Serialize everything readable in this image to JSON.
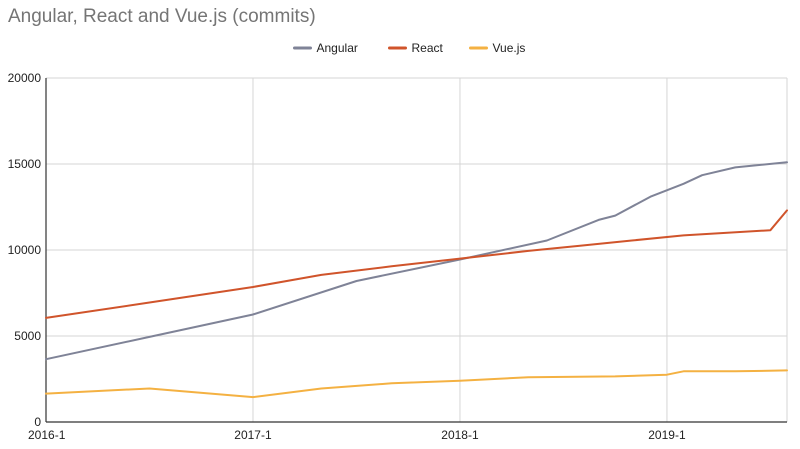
{
  "chart_data": {
    "type": "line",
    "title": "Angular, React and Vue.js (commits)",
    "xlabel": "",
    "ylabel": "",
    "x_ticks": [
      "2016-1",
      "2017-1",
      "2018-1",
      "2019-1"
    ],
    "x_tick_values": [
      2016.0,
      2017.0,
      2018.0,
      2019.0
    ],
    "xlim": [
      2016.0,
      2019.58
    ],
    "y_ticks": [
      0,
      5000,
      10000,
      15000,
      20000
    ],
    "ylim": [
      0,
      20000
    ],
    "grid": true,
    "legend_position": "top-center",
    "series": [
      {
        "name": "Angular",
        "color": "#7f8397",
        "points": [
          [
            2016.0,
            3650
          ],
          [
            2016.5,
            4950
          ],
          [
            2017.0,
            6250
          ],
          [
            2017.5,
            8200
          ],
          [
            2018.0,
            9450
          ],
          [
            2018.42,
            10550
          ],
          [
            2018.67,
            11750
          ],
          [
            2018.75,
            12000
          ],
          [
            2018.92,
            13100
          ],
          [
            2019.08,
            13850
          ],
          [
            2019.17,
            14350
          ],
          [
            2019.33,
            14800
          ],
          [
            2019.58,
            15100
          ]
        ]
      },
      {
        "name": "React",
        "color": "#d0542b",
        "points": [
          [
            2016.0,
            6050
          ],
          [
            2016.5,
            6950
          ],
          [
            2017.0,
            7850
          ],
          [
            2017.33,
            8550
          ],
          [
            2017.67,
            9050
          ],
          [
            2018.0,
            9500
          ],
          [
            2018.33,
            9950
          ],
          [
            2018.58,
            10250
          ],
          [
            2018.83,
            10550
          ],
          [
            2019.08,
            10850
          ],
          [
            2019.5,
            11150
          ],
          [
            2019.58,
            12300
          ]
        ]
      },
      {
        "name": "Vue.js",
        "color": "#f4b142",
        "points": [
          [
            2016.0,
            1650
          ],
          [
            2016.5,
            1950
          ],
          [
            2017.0,
            1450
          ],
          [
            2017.33,
            1950
          ],
          [
            2017.67,
            2250
          ],
          [
            2018.0,
            2400
          ],
          [
            2018.33,
            2600
          ],
          [
            2018.75,
            2650
          ],
          [
            2019.0,
            2750
          ],
          [
            2019.08,
            2950
          ],
          [
            2019.33,
            2950
          ],
          [
            2019.58,
            3000
          ]
        ]
      }
    ]
  }
}
